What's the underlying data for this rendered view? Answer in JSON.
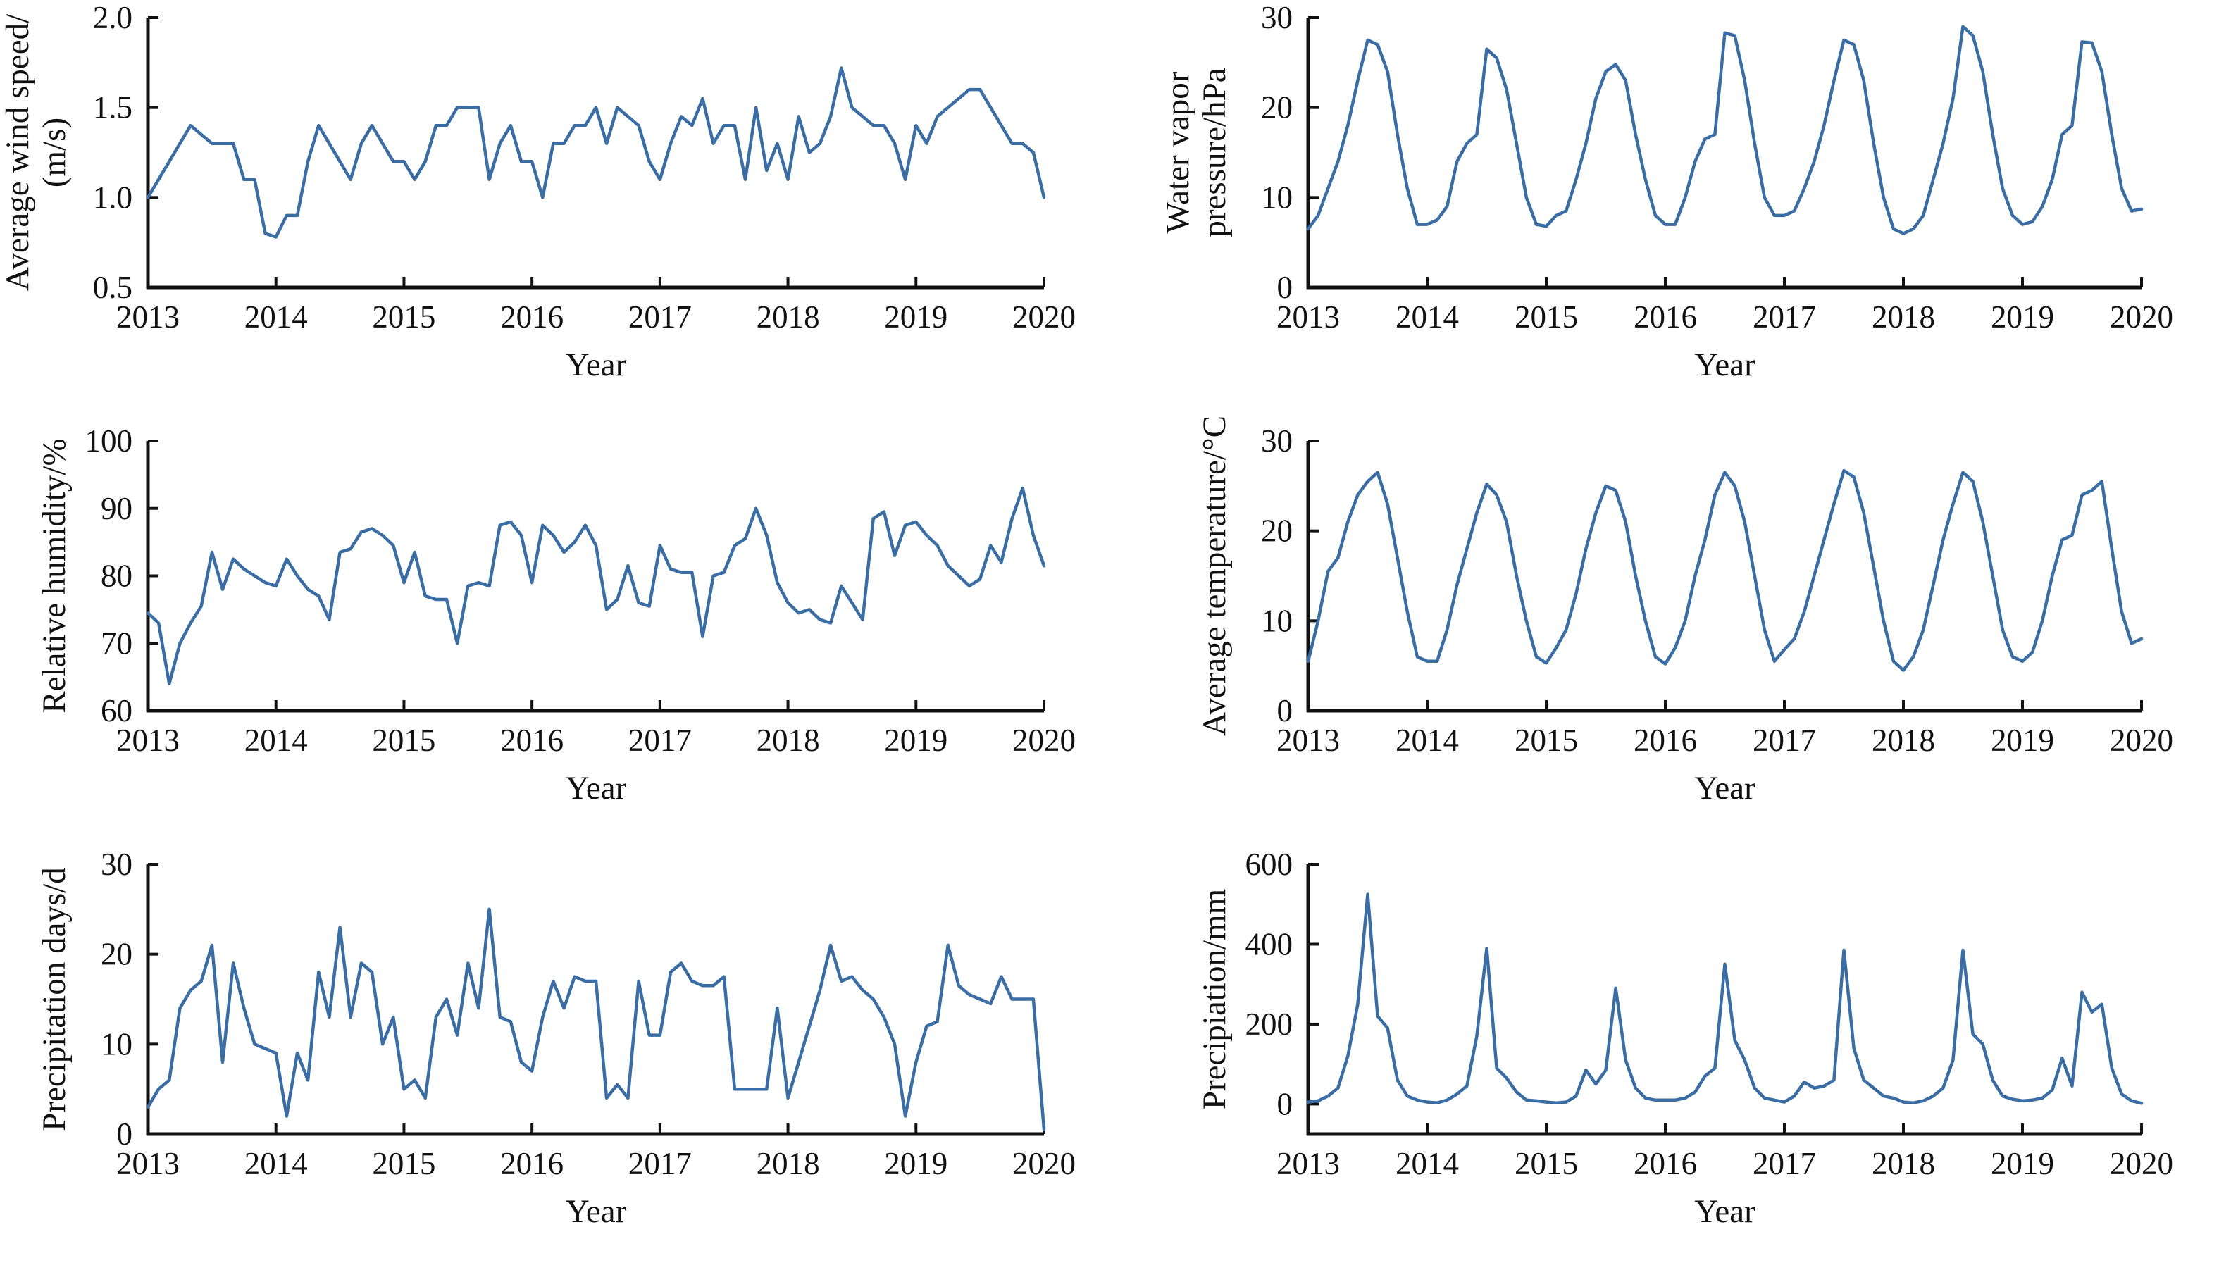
{
  "figure": {
    "background": "#ffffff",
    "axis_color": "#111111",
    "text_color": "#111111",
    "line_color": "#3a6da4",
    "xlabel": "Year"
  },
  "chart_data": [
    {
      "id": "average-wind-speed",
      "type": "line",
      "ylabel_lines": [
        "Average wind speed/",
        "(m/s)"
      ],
      "xlabel": "Year",
      "xlim": [
        2013,
        2020
      ],
      "xticks": [
        2013,
        2014,
        2015,
        2016,
        2017,
        2018,
        2019,
        2020
      ],
      "ylim": [
        0.5,
        2.0
      ],
      "yticks": [
        0.5,
        1.0,
        1.5,
        2.0
      ],
      "ytick_decimals": 1,
      "x_start_year": 2013,
      "points_per_year": 12,
      "grid": false,
      "legend": "none",
      "values": [
        1.0,
        1.1,
        1.2,
        1.3,
        1.4,
        1.35,
        1.3,
        1.3,
        1.3,
        1.1,
        1.1,
        0.8,
        0.78,
        0.9,
        0.9,
        1.2,
        1.4,
        1.3,
        1.2,
        1.1,
        1.3,
        1.4,
        1.3,
        1.2,
        1.2,
        1.1,
        1.2,
        1.4,
        1.4,
        1.5,
        1.5,
        1.5,
        1.1,
        1.3,
        1.4,
        1.2,
        1.2,
        1.0,
        1.3,
        1.3,
        1.4,
        1.4,
        1.5,
        1.3,
        1.5,
        1.45,
        1.4,
        1.2,
        1.1,
        1.3,
        1.45,
        1.4,
        1.55,
        1.3,
        1.4,
        1.4,
        1.1,
        1.5,
        1.15,
        1.3,
        1.1,
        1.45,
        1.25,
        1.3,
        1.45,
        1.72,
        1.5,
        1.45,
        1.4,
        1.4,
        1.3,
        1.1,
        1.4,
        1.3,
        1.45,
        1.5,
        1.55,
        1.6,
        1.6,
        1.5,
        1.4,
        1.3,
        1.3,
        1.25,
        1.0
      ]
    },
    {
      "id": "water-vapor-pressure",
      "type": "line",
      "ylabel_lines": [
        "Water vapor",
        "pressure/hPa"
      ],
      "xlabel": "Year",
      "xlim": [
        2013,
        2020
      ],
      "xticks": [
        2013,
        2014,
        2015,
        2016,
        2017,
        2018,
        2019,
        2020
      ],
      "ylim": [
        0,
        30
      ],
      "yticks": [
        0,
        10,
        20,
        30
      ],
      "ytick_decimals": 0,
      "x_start_year": 2013,
      "points_per_year": 12,
      "grid": false,
      "legend": "none",
      "values": [
        6.5,
        8,
        11,
        14,
        18,
        23,
        27.5,
        27,
        24,
        17,
        11,
        7,
        7,
        7.5,
        9,
        14,
        16,
        17,
        26.5,
        25.5,
        22,
        16,
        10,
        7,
        6.8,
        8,
        8.5,
        12,
        16,
        21,
        24,
        24.8,
        23,
        17,
        12,
        8,
        7,
        7,
        10,
        14,
        16.5,
        17,
        28.3,
        28,
        23,
        16,
        10,
        8,
        8,
        8.5,
        11,
        14,
        18,
        23,
        27.5,
        27,
        23,
        16,
        10,
        6.5,
        6,
        6.5,
        8,
        12,
        16,
        21,
        29,
        28,
        24,
        17,
        11,
        8,
        7,
        7.3,
        9,
        12,
        17,
        18,
        27.3,
        27.2,
        24,
        17,
        11,
        8.5,
        8.7
      ]
    },
    {
      "id": "relative-humidity",
      "type": "line",
      "ylabel_lines": [
        "Relative humidity/%"
      ],
      "xlabel": "Year",
      "xlim": [
        2013,
        2020
      ],
      "xticks": [
        2013,
        2014,
        2015,
        2016,
        2017,
        2018,
        2019,
        2020
      ],
      "ylim": [
        60,
        100
      ],
      "yticks": [
        60,
        70,
        80,
        90,
        100
      ],
      "ytick_decimals": 0,
      "x_start_year": 2013,
      "points_per_year": 12,
      "grid": false,
      "legend": "none",
      "values": [
        74.5,
        73,
        64,
        70,
        73,
        75.5,
        83.5,
        78,
        82.5,
        81,
        80,
        79,
        78.5,
        82.5,
        80,
        78,
        77,
        73.5,
        83.5,
        84,
        86.5,
        87,
        86,
        84.5,
        79,
        83.5,
        77,
        76.5,
        76.5,
        70,
        78.5,
        79,
        78.5,
        87.5,
        88,
        86,
        79,
        87.5,
        86,
        83.5,
        85,
        87.5,
        84.5,
        75,
        76.5,
        81.5,
        76,
        75.5,
        84.5,
        81,
        80.5,
        80.5,
        71,
        80,
        80.5,
        84.5,
        85.5,
        90,
        86,
        79,
        76,
        74.5,
        75,
        73.5,
        73,
        78.5,
        76,
        73.5,
        88.5,
        89.5,
        83,
        87.5,
        88,
        86,
        84.5,
        81.5,
        80,
        78.5,
        79.5,
        84.5,
        82,
        88.5,
        93,
        86,
        81.5
      ]
    },
    {
      "id": "average-temperature",
      "type": "line",
      "ylabel_lines": [
        "Average temperature/°C"
      ],
      "xlabel": "Year",
      "xlim": [
        2013,
        2020
      ],
      "xticks": [
        2013,
        2014,
        2015,
        2016,
        2017,
        2018,
        2019,
        2020
      ],
      "ylim": [
        0,
        30
      ],
      "yticks": [
        0,
        10,
        20,
        30
      ],
      "ytick_decimals": 0,
      "x_start_year": 2013,
      "points_per_year": 12,
      "grid": false,
      "legend": "none",
      "values": [
        5.5,
        10,
        15.5,
        17,
        21,
        24,
        25.5,
        26.5,
        23,
        17,
        11,
        6,
        5.5,
        5.5,
        9,
        14,
        18,
        22,
        25.2,
        24,
        21,
        15,
        10,
        6,
        5.3,
        7,
        9,
        13,
        18,
        22,
        25,
        24.5,
        21,
        15,
        10,
        6,
        5.2,
        7,
        10,
        15,
        19,
        24,
        26.5,
        25,
        21,
        15,
        9,
        5.5,
        6.8,
        8,
        11,
        15,
        19,
        23,
        26.7,
        26,
        22,
        16,
        10,
        5.5,
        4.5,
        6,
        9,
        14,
        19,
        23,
        26.5,
        25.5,
        21,
        15,
        9,
        6,
        5.5,
        6.5,
        10,
        15,
        19,
        19.5,
        24,
        24.5,
        25.5,
        18,
        11,
        7.5,
        8
      ]
    },
    {
      "id": "precipitation-days",
      "type": "line",
      "ylabel_lines": [
        "Precipitation days/d"
      ],
      "xlabel": "Year",
      "xlim": [
        2013,
        2020
      ],
      "xticks": [
        2013,
        2014,
        2015,
        2016,
        2017,
        2018,
        2019,
        2020
      ],
      "ylim": [
        0,
        30
      ],
      "yticks": [
        0,
        10,
        20,
        30
      ],
      "ytick_decimals": 0,
      "x_start_year": 2013,
      "points_per_year": 12,
      "grid": false,
      "legend": "none",
      "values": [
        3,
        5,
        6,
        14,
        16,
        17,
        21,
        8,
        19,
        14,
        10,
        9.5,
        9,
        2,
        9,
        6,
        18,
        13,
        23,
        13,
        19,
        18,
        10,
        13,
        5,
        6,
        4,
        13,
        15,
        11,
        19,
        14,
        25,
        13,
        12.5,
        8,
        7,
        13,
        17,
        14,
        17.5,
        17,
        17,
        4,
        5.5,
        4,
        17,
        11,
        11,
        18,
        19,
        17,
        16.5,
        16.5,
        17.5,
        5,
        5,
        5,
        5,
        14,
        4,
        8,
        12,
        16,
        21,
        17,
        17.5,
        16,
        15,
        13,
        10,
        2,
        8,
        12,
        12.5,
        21,
        16.5,
        15.5,
        15,
        14.5,
        17.5,
        15,
        15,
        15,
        0.5
      ]
    },
    {
      "id": "precipitation-mm",
      "type": "line",
      "ylabel_lines": [
        "Precipiation/mm"
      ],
      "xlabel": "Year",
      "xlim": [
        2013,
        2020
      ],
      "xticks": [
        2013,
        2014,
        2015,
        2016,
        2017,
        2018,
        2019,
        2020
      ],
      "ylim": [
        -75,
        600
      ],
      "yticks": [
        0,
        200,
        400,
        600
      ],
      "ytick_decimals": 0,
      "x_start_year": 2013,
      "points_per_year": 12,
      "grid": false,
      "legend": "none",
      "values": [
        5,
        8,
        20,
        40,
        120,
        250,
        525,
        220,
        190,
        60,
        20,
        10,
        5,
        3,
        10,
        25,
        45,
        170,
        390,
        90,
        65,
        30,
        10,
        8,
        5,
        3,
        5,
        20,
        85,
        50,
        85,
        290,
        110,
        40,
        15,
        10,
        10,
        10,
        15,
        30,
        70,
        90,
        350,
        160,
        110,
        40,
        15,
        10,
        5,
        20,
        55,
        40,
        45,
        60,
        385,
        140,
        60,
        40,
        20,
        15,
        5,
        3,
        8,
        20,
        40,
        110,
        385,
        175,
        150,
        60,
        20,
        12,
        8,
        10,
        15,
        35,
        115,
        45,
        280,
        230,
        250,
        90,
        25,
        8,
        2
      ]
    }
  ]
}
